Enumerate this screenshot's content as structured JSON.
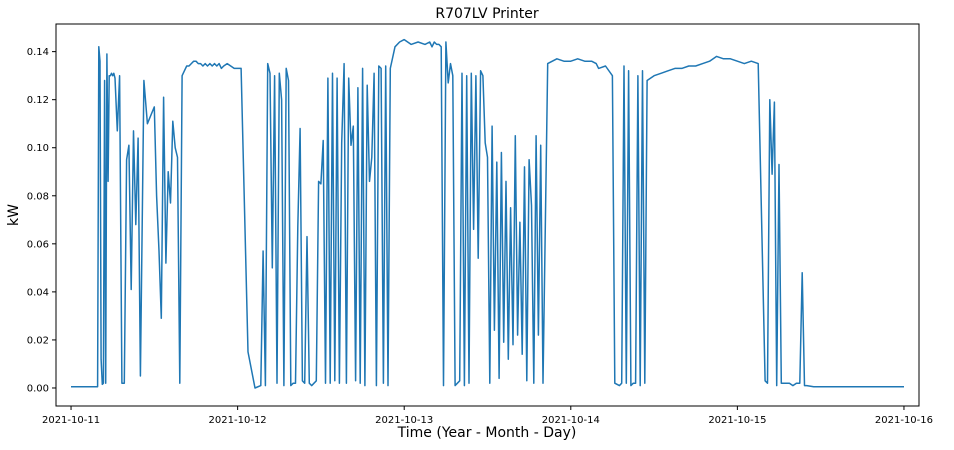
{
  "chart_data": {
    "type": "line",
    "title": "R707LV Printer",
    "xlabel": "Time (Year - Month - Day)",
    "ylabel": "kW",
    "x_ticks": [
      "2021-10-11",
      "2021-10-12",
      "2021-10-13",
      "2021-10-14",
      "2021-10-15",
      "2021-10-16"
    ],
    "y_ticks": [
      "0.00",
      "0.02",
      "0.04",
      "0.06",
      "0.08",
      "0.10",
      "0.12",
      "0.14"
    ],
    "xlim": [
      "2021-10-10 21:50",
      "2021-10-16 02:10"
    ],
    "ylim": [
      -0.0075,
      0.1515
    ],
    "grid": false,
    "series_color": "#1f77b4",
    "series": [
      {
        "x": [
          "2021-10-11 00:00",
          "2021-10-11 03:50",
          "2021-10-11 04:00",
          "2021-10-11 04:10",
          "2021-10-11 04:20",
          "2021-10-11 04:30",
          "2021-10-11 04:40",
          "2021-10-11 04:50",
          "2021-10-11 05:00",
          "2021-10-11 05:10",
          "2021-10-11 05:20",
          "2021-10-11 05:30",
          "2021-10-11 05:40",
          "2021-10-11 05:50",
          "2021-10-11 06:00",
          "2021-10-11 06:10",
          "2021-10-11 06:20",
          "2021-10-11 06:40",
          "2021-10-11 07:00",
          "2021-10-11 07:20",
          "2021-10-11 07:40",
          "2021-10-11 08:00",
          "2021-10-11 08:20",
          "2021-10-11 08:40",
          "2021-10-11 09:00",
          "2021-10-11 09:20",
          "2021-10-11 09:40",
          "2021-10-11 10:00",
          "2021-10-11 10:30",
          "2021-10-11 11:00",
          "2021-10-11 12:00",
          "2021-10-11 12:20",
          "2021-10-11 12:40",
          "2021-10-11 13:00",
          "2021-10-11 13:20",
          "2021-10-11 13:40",
          "2021-10-11 14:00",
          "2021-10-11 14:20",
          "2021-10-11 14:40",
          "2021-10-11 15:00",
          "2021-10-11 15:20",
          "2021-10-11 15:40",
          "2021-10-11 16:00",
          "2021-10-11 16:20",
          "2021-10-11 16:40",
          "2021-10-11 17:00",
          "2021-10-11 17:20",
          "2021-10-11 17:40",
          "2021-10-11 18:00",
          "2021-10-11 18:20",
          "2021-10-11 18:40",
          "2021-10-11 19:00",
          "2021-10-11 19:20",
          "2021-10-11 19:40",
          "2021-10-11 20:00",
          "2021-10-11 20:20",
          "2021-10-11 20:40",
          "2021-10-11 21:00",
          "2021-10-11 21:20",
          "2021-10-11 21:40",
          "2021-10-11 22:00",
          "2021-10-11 22:30",
          "2021-10-11 23:00",
          "2021-10-11 23:30",
          "2021-10-12 00:30",
          "2021-10-12 01:30",
          "2021-10-12 02:30",
          "2021-10-12 03:20",
          "2021-10-12 03:40",
          "2021-10-12 04:00",
          "2021-10-12 04:20",
          "2021-10-12 04:40",
          "2021-10-12 05:00",
          "2021-10-12 05:20",
          "2021-10-12 05:40",
          "2021-10-12 06:00",
          "2021-10-12 06:20",
          "2021-10-12 06:40",
          "2021-10-12 07:00",
          "2021-10-12 07:20",
          "2021-10-12 07:40",
          "2021-10-12 08:00",
          "2021-10-12 08:20",
          "2021-10-12 08:40",
          "2021-10-12 09:00",
          "2021-10-12 09:20",
          "2021-10-12 09:40",
          "2021-10-12 10:00",
          "2021-10-12 10:20",
          "2021-10-12 10:40",
          "2021-10-12 11:00",
          "2021-10-12 11:20",
          "2021-10-12 11:40",
          "2021-10-12 12:00",
          "2021-10-12 12:20",
          "2021-10-12 12:40",
          "2021-10-12 13:00",
          "2021-10-12 13:20",
          "2021-10-12 13:40",
          "2021-10-12 14:00",
          "2021-10-12 14:20",
          "2021-10-12 14:40",
          "2021-10-12 15:00",
          "2021-10-12 15:20",
          "2021-10-12 15:40",
          "2021-10-12 16:00",
          "2021-10-12 16:20",
          "2021-10-12 16:40",
          "2021-10-12 17:00",
          "2021-10-12 17:20",
          "2021-10-12 17:40",
          "2021-10-12 18:00",
          "2021-10-12 18:20",
          "2021-10-12 18:40",
          "2021-10-12 19:00",
          "2021-10-12 19:20",
          "2021-10-12 19:40",
          "2021-10-12 20:00",
          "2021-10-12 20:20",
          "2021-10-12 20:40",
          "2021-10-12 21:00",
          "2021-10-12 21:20",
          "2021-10-12 21:40",
          "2021-10-12 22:00",
          "2021-10-12 22:40",
          "2021-10-12 23:20",
          "2021-10-13 00:00",
          "2021-10-13 01:00",
          "2021-10-13 02:00",
          "2021-10-13 03:00",
          "2021-10-13 03:40",
          "2021-10-13 04:00",
          "2021-10-13 04:20",
          "2021-10-13 04:40",
          "2021-10-13 05:00",
          "2021-10-13 05:20",
          "2021-10-13 05:40",
          "2021-10-13 06:00",
          "2021-10-13 06:20",
          "2021-10-13 06:40",
          "2021-10-13 07:00",
          "2021-10-13 07:20",
          "2021-10-13 07:40",
          "2021-10-13 08:00",
          "2021-10-13 08:20",
          "2021-10-13 08:40",
          "2021-10-13 09:00",
          "2021-10-13 09:20",
          "2021-10-13 09:40",
          "2021-10-13 10:00",
          "2021-10-13 10:20",
          "2021-10-13 10:40",
          "2021-10-13 11:00",
          "2021-10-13 11:20",
          "2021-10-13 11:40",
          "2021-10-13 12:00",
          "2021-10-13 12:20",
          "2021-10-13 12:40",
          "2021-10-13 13:00",
          "2021-10-13 13:20",
          "2021-10-13 13:40",
          "2021-10-13 14:00",
          "2021-10-13 14:20",
          "2021-10-13 14:40",
          "2021-10-13 15:00",
          "2021-10-13 15:20",
          "2021-10-13 15:40",
          "2021-10-13 16:00",
          "2021-10-13 16:20",
          "2021-10-13 16:40",
          "2021-10-13 17:00",
          "2021-10-13 17:20",
          "2021-10-13 17:40",
          "2021-10-13 18:00",
          "2021-10-13 18:20",
          "2021-10-13 18:40",
          "2021-10-13 19:00",
          "2021-10-13 19:20",
          "2021-10-13 19:40",
          "2021-10-13 20:00",
          "2021-10-13 20:40",
          "2021-10-13 21:20",
          "2021-10-13 22:00",
          "2021-10-13 23:00",
          "2021-10-14 00:00",
          "2021-10-14 01:00",
          "2021-10-14 02:00",
          "2021-10-14 03:00",
          "2021-10-14 03:40",
          "2021-10-14 04:00",
          "2021-10-14 05:00",
          "2021-10-14 06:00",
          "2021-10-14 06:20",
          "2021-10-14 07:00",
          "2021-10-14 07:20",
          "2021-10-14 07:40",
          "2021-10-14 08:00",
          "2021-10-14 08:20",
          "2021-10-14 08:40",
          "2021-10-14 09:00",
          "2021-10-14 09:20",
          "2021-10-14 09:40",
          "2021-10-14 10:00",
          "2021-10-14 10:20",
          "2021-10-14 10:40",
          "2021-10-14 11:00",
          "2021-10-14 12:00",
          "2021-10-14 13:00",
          "2021-10-14 14:00",
          "2021-10-14 15:00",
          "2021-10-14 16:00",
          "2021-10-14 17:00",
          "2021-10-14 18:00",
          "2021-10-14 19:00",
          "2021-10-14 20:00",
          "2021-10-14 21:00",
          "2021-10-14 22:00",
          "2021-10-14 23:00",
          "2021-10-15 00:00",
          "2021-10-15 01:00",
          "2021-10-15 02:00",
          "2021-10-15 03:00",
          "2021-10-15 04:00",
          "2021-10-15 04:20",
          "2021-10-15 04:40",
          "2021-10-15 05:00",
          "2021-10-15 05:20",
          "2021-10-15 05:40",
          "2021-10-15 06:00",
          "2021-10-15 06:20",
          "2021-10-15 06:40",
          "2021-10-15 07:00",
          "2021-10-15 07:30",
          "2021-10-15 08:00",
          "2021-10-15 08:30",
          "2021-10-15 09:00",
          "2021-10-15 09:20",
          "2021-10-15 09:40",
          "2021-10-15 10:00",
          "2021-10-15 11:00",
          "2021-10-15 12:00",
          "2021-10-15 14:00",
          "2021-10-15 16:00",
          "2021-10-15 18:00",
          "2021-10-15 20:00",
          "2021-10-15 22:00",
          "2021-10-16 00:00"
        ],
        "y": [
          0.0005,
          0.0005,
          0.142,
          0.136,
          0.012,
          0.0015,
          0.002,
          0.128,
          0.002,
          0.139,
          0.086,
          0.13,
          0.13,
          0.131,
          0.13,
          0.131,
          0.129,
          0.107,
          0.13,
          0.002,
          0.002,
          0.095,
          0.101,
          0.041,
          0.107,
          0.068,
          0.104,
          0.005,
          0.128,
          0.11,
          0.117,
          0.08,
          0.057,
          0.029,
          0.121,
          0.052,
          0.09,
          0.077,
          0.111,
          0.1,
          0.096,
          0.002,
          0.13,
          0.132,
          0.134,
          0.134,
          0.135,
          0.136,
          0.136,
          0.135,
          0.135,
          0.134,
          0.135,
          0.134,
          0.135,
          0.134,
          0.135,
          0.134,
          0.135,
          0.133,
          0.134,
          0.135,
          0.134,
          0.133,
          0.133,
          0.015,
          0.0,
          0.001,
          0.057,
          0.001,
          0.135,
          0.131,
          0.05,
          0.13,
          0.002,
          0.131,
          0.12,
          0.001,
          0.133,
          0.128,
          0.001,
          0.002,
          0.002,
          0.067,
          0.108,
          0.003,
          0.002,
          0.063,
          0.002,
          0.001,
          0.002,
          0.003,
          0.086,
          0.085,
          0.103,
          0.002,
          0.129,
          0.002,
          0.131,
          0.003,
          0.129,
          0.002,
          0.102,
          0.135,
          0.002,
          0.129,
          0.101,
          0.109,
          0.003,
          0.125,
          0.002,
          0.133,
          0.001,
          0.126,
          0.086,
          0.096,
          0.131,
          0.001,
          0.134,
          0.133,
          0.002,
          0.134,
          0.001,
          0.133,
          0.142,
          0.144,
          0.145,
          0.143,
          0.144,
          0.143,
          0.144,
          0.142,
          0.144,
          0.143,
          0.143,
          0.142,
          0.001,
          0.144,
          0.127,
          0.135,
          0.13,
          0.001,
          0.002,
          0.003,
          0.131,
          0.001,
          0.13,
          0.002,
          0.131,
          0.066,
          0.13,
          0.054,
          0.132,
          0.13,
          0.102,
          0.096,
          0.002,
          0.109,
          0.024,
          0.094,
          0.004,
          0.098,
          0.019,
          0.086,
          0.012,
          0.075,
          0.018,
          0.105,
          0.022,
          0.069,
          0.014,
          0.092,
          0.003,
          0.095,
          0.076,
          0.002,
          0.105,
          0.022,
          0.101,
          0.002,
          0.135,
          0.136,
          0.137,
          0.136,
          0.136,
          0.137,
          0.136,
          0.136,
          0.135,
          0.133,
          0.134,
          0.13,
          0.002,
          0.001,
          0.002,
          0.134,
          0.002,
          0.132,
          0.001,
          0.002,
          0.002,
          0.13,
          0.001,
          0.132,
          0.002,
          0.128,
          0.13,
          0.131,
          0.132,
          0.133,
          0.133,
          0.134,
          0.134,
          0.135,
          0.136,
          0.138,
          0.137,
          0.137,
          0.136,
          0.135,
          0.136,
          0.135,
          0.003,
          0.002,
          0.12,
          0.089,
          0.119,
          0.001,
          0.093,
          0.002,
          0.002,
          0.002,
          0.002,
          0.001,
          0.002,
          0.002,
          0.048,
          0.001,
          0.001,
          0.0005,
          0.0005,
          0.0005,
          0.0005,
          0.0005,
          0.0005,
          0.0005,
          0.0005
        ]
      }
    ]
  }
}
